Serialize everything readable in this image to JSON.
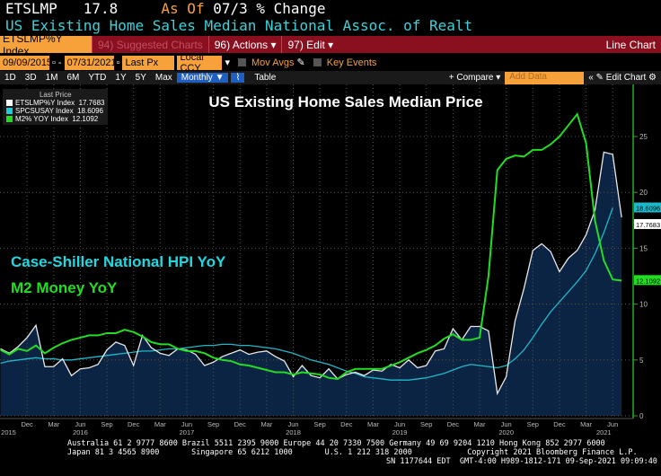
{
  "header": {
    "ticker": "ETSLMP",
    "value": "17.8",
    "as_of_label": "As Of",
    "as_of_value": "07/3",
    "change_label": "% Change",
    "description": "US Existing Home Sales Median  National Assoc. of Realt"
  },
  "toolbar1": {
    "security": "ETSLMP%Y Index",
    "suggested": "94) Suggested Charts",
    "actions": "96) Actions ▾",
    "edit": "97) Edit ▾",
    "chart_type": "Line Chart"
  },
  "toolbar2": {
    "start_date": "09/09/2015",
    "end_date": "07/31/2021",
    "field": "Last Px",
    "currency": "Local CCY",
    "mov_avgs": "Mov Avgs",
    "key_events": "Key Events"
  },
  "toolbar3": {
    "ranges": [
      "1D",
      "3D",
      "1M",
      "6M",
      "YTD",
      "1Y",
      "5Y",
      "Max"
    ],
    "period": "Monthly ▼",
    "table": "Table",
    "compare": "+ Compare ▾",
    "add_data_placeholder": "Add Data",
    "edit_chart": "« ✎ Edit Chart ⚙"
  },
  "legend": {
    "title": "Last Price",
    "items": [
      {
        "name": "ETSLMP%Y Index",
        "value": "17.7683",
        "color": "#ffffff"
      },
      {
        "name": "SPCSUSAY Index",
        "value": "18.6096",
        "color": "#22c8d8"
      },
      {
        "name": "M2% YOY Index",
        "value": "12.1092",
        "color": "#22dd22"
      }
    ]
  },
  "annotations": {
    "case_shiller": "Case-Shiller National HPI YoY",
    "m2": "M2 Money YoY"
  },
  "footer": {
    "line1": "Australia 61 2 9777 8600 Brazil 5511 2395 9000 Europe 44 20 7330 7500 Germany 49 69 9204 1210 Hong Kong 852 2977 6000",
    "line2": "Japan 81 3 4565 8900       Singapore 65 6212 1000       U.S. 1 212 318 2000            Copyright 2021 Bloomberg Finance L.P.",
    "line3": "SN 1177644 EDT  GMT-4:00 H989-1812-171 09-Sep-2021 09:09:40"
  },
  "chart_data": {
    "type": "line",
    "title": "US Existing Home Sales Median Price",
    "x_start": "2015-09",
    "x_end": "2021-07",
    "frequency": "monthly",
    "ylim": [
      0,
      27.5
    ],
    "yticks": [
      0,
      5,
      10,
      15,
      20,
      25
    ],
    "grid": true,
    "legend_position": "top-left",
    "xticks": [
      {
        "label": "Dec",
        "m": 3
      },
      {
        "label": "Mar",
        "m": 6
      },
      {
        "label": "Jun",
        "m": 9
      },
      {
        "label": "Sep",
        "m": 12
      },
      {
        "label": "Dec",
        "m": 15
      },
      {
        "label": "Mar",
        "m": 18
      },
      {
        "label": "Jun",
        "m": 21
      },
      {
        "label": "Sep",
        "m": 24
      },
      {
        "label": "Dec",
        "m": 27
      },
      {
        "label": "Mar",
        "m": 30
      },
      {
        "label": "Jun",
        "m": 33
      },
      {
        "label": "Sep",
        "m": 36
      },
      {
        "label": "Dec",
        "m": 39
      },
      {
        "label": "Mar",
        "m": 42
      },
      {
        "label": "Jun",
        "m": 45
      },
      {
        "label": "Sep",
        "m": 48
      },
      {
        "label": "Dec",
        "m": 51
      },
      {
        "label": "Mar",
        "m": 54
      },
      {
        "label": "Jun",
        "m": 57
      },
      {
        "label": "Sep",
        "m": 60
      },
      {
        "label": "Dec",
        "m": 63
      },
      {
        "label": "Mar",
        "m": 66
      },
      {
        "label": "Jun",
        "m": 69
      }
    ],
    "years": [
      {
        "label": "2015",
        "m": 0
      },
      {
        "label": "2016",
        "m": 9
      },
      {
        "label": "2017",
        "m": 21
      },
      {
        "label": "2018",
        "m": 33
      },
      {
        "label": "2019",
        "m": 45
      },
      {
        "label": "2020",
        "m": 57
      },
      {
        "label": "2021",
        "m": 68
      }
    ],
    "series": [
      {
        "name": "ETSLMP%Y Index",
        "color": "#e8e8e8",
        "fill": "#0b2444",
        "last": "17.7683",
        "values": [
          6.0,
          5.6,
          6.2,
          7.0,
          8.1,
          4.4,
          4.4,
          5.1,
          3.6,
          4.2,
          4.3,
          4.6,
          5.9,
          6.6,
          6.3,
          4.5,
          7.2,
          6.1,
          5.6,
          5.4,
          6.0,
          5.9,
          5.5,
          4.5,
          4.8,
          5.3,
          5.6,
          5.9,
          5.5,
          5.7,
          5.8,
          5.3,
          4.9,
          3.5,
          4.5,
          3.6,
          3.4,
          4.2,
          3.3,
          3.7,
          3.9,
          3.6,
          4.1,
          4.0,
          4.6,
          4.3,
          5.0,
          4.3,
          4.5,
          5.8,
          6.0,
          7.8,
          6.8,
          8.0,
          8.0,
          7.6,
          2.0,
          3.5,
          8.5,
          11.4,
          14.8,
          15.4,
          14.7,
          12.9,
          14.1,
          14.8,
          16.2,
          18.4,
          23.6,
          23.4,
          17.77
        ]
      },
      {
        "name": "SPCSUSAY Index",
        "color": "#1fb8c8",
        "last": "18.6096",
        "values": [
          4.7,
          4.9,
          5.0,
          5.1,
          5.2,
          5.1,
          5.1,
          5.0,
          5.0,
          5.1,
          5.2,
          5.3,
          5.4,
          5.5,
          5.6,
          5.7,
          5.8,
          5.8,
          5.9,
          6.0,
          6.0,
          6.1,
          6.2,
          6.3,
          6.3,
          6.4,
          6.4,
          6.3,
          6.3,
          6.2,
          6.1,
          6.0,
          5.8,
          5.6,
          5.3,
          5.0,
          4.8,
          4.6,
          4.3,
          4.0,
          3.8,
          3.5,
          3.4,
          3.3,
          3.2,
          3.2,
          3.2,
          3.3,
          3.4,
          3.6,
          3.8,
          4.1,
          4.4,
          4.6,
          4.5,
          4.4,
          4.3,
          4.5,
          5.1,
          5.9,
          7.0,
          8.2,
          9.3,
          10.2,
          11.1,
          12.0,
          13.0,
          14.5,
          16.4,
          18.61,
          null
        ]
      },
      {
        "name": "M2% YOY Index",
        "color": "#22dd22",
        "last": "12.1092",
        "values": [
          5.9,
          5.5,
          6.0,
          5.8,
          6.3,
          5.6,
          6.1,
          6.5,
          6.8,
          7.0,
          7.2,
          7.2,
          7.4,
          7.4,
          7.7,
          7.5,
          7.1,
          6.6,
          6.4,
          6.4,
          6.0,
          5.8,
          5.8,
          5.6,
          5.2,
          5.0,
          4.9,
          4.6,
          4.5,
          4.3,
          4.1,
          3.9,
          3.9,
          3.7,
          3.9,
          3.8,
          3.7,
          3.4,
          3.3,
          3.9,
          4.2,
          4.2,
          4.2,
          4.2,
          4.5,
          4.8,
          5.2,
          5.6,
          5.9,
          6.3,
          6.9,
          7.3,
          6.8,
          6.8,
          7.0,
          12.5,
          22.0,
          23.0,
          23.3,
          23.2,
          23.8,
          23.8,
          24.3,
          25.0,
          26.0,
          27.0,
          24.4,
          17.5,
          13.9,
          12.2,
          12.11
        ]
      }
    ]
  }
}
